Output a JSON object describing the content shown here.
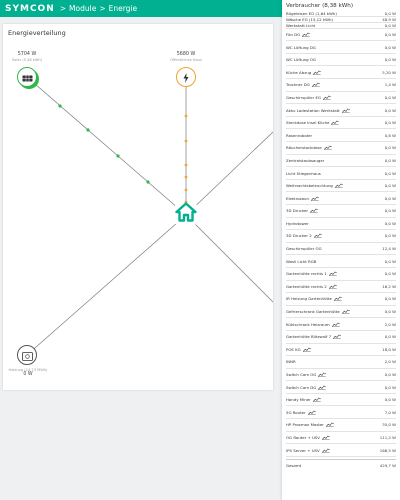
{
  "header": {
    "logo": "SYMCON",
    "breadcrumb": [
      "Module",
      "Energie"
    ],
    "separator": ">",
    "bar_color": "#00b090"
  },
  "card": {
    "title": "Energieverteilung"
  },
  "nodes": {
    "solar": {
      "value": "5704 W",
      "label": "Solar (5,38 kWh)",
      "icon": "solar-panel-icon",
      "color": "#2fb84a"
    },
    "grid": {
      "value": "5680 W",
      "label": "Öffentliches Haus",
      "icon": "lightning-bolt-icon",
      "color": "#f2a32a"
    },
    "home": {
      "icon": "house-icon",
      "color": "#00b090"
    },
    "heating": {
      "label": "Heizung (14,73 MWh)",
      "value": "0 W",
      "icon": "heater-icon"
    }
  },
  "panel": {
    "title": "Verbraucher (8,38 kWh)",
    "rows_compact": [
      {
        "label": "Bügeleisen EG (1,64 kWh)",
        "value": "0,0 W"
      },
      {
        "label": "Wäsche EG (15,12 kWh)",
        "value": "48,9 W"
      },
      {
        "label": "Werkstatt Licht",
        "value": "0,0 W"
      }
    ],
    "rows": [
      {
        "label": "Fön DG",
        "value": "0,0 W",
        "chart": true
      },
      {
        "label": "WC Lüftung DG",
        "value": "0,0 W",
        "chart": false
      },
      {
        "label": "WC Lüftung OG",
        "value": "0,0 W",
        "chart": false
      },
      {
        "label": "Küche Abzug",
        "value": "5,20 W",
        "chart": true
      },
      {
        "label": "Trockner DG",
        "value": "1,4 W",
        "chart": true
      },
      {
        "label": "Geschirrspüler EG",
        "value": "0,0 W",
        "chart": true
      },
      {
        "label": "Akku Ladestation Werkstatt",
        "value": "0,0 W",
        "chart": true
      },
      {
        "label": "Steckdose Insel Küche",
        "value": "0,0 W",
        "chart": true
      },
      {
        "label": "Rasenroboter",
        "value": "0,8 W",
        "chart": false
      },
      {
        "label": "Räucherstackdose",
        "value": "0,0 W",
        "chart": true
      },
      {
        "label": "Zentralstaubsauger",
        "value": "0,0 W",
        "chart": false
      },
      {
        "label": "Licht Stiegenhaus",
        "value": "0,0 W",
        "chart": false
      },
      {
        "label": "Weihnachtsbeleuchtung",
        "value": "0,0 W",
        "chart": true
      },
      {
        "label": "Elektrozaun",
        "value": "0,0 W",
        "chart": true
      },
      {
        "label": "3D Drucker",
        "value": "0,0 W",
        "chart": true
      },
      {
        "label": "Hydrotower",
        "value": "0,0 W",
        "chart": false
      },
      {
        "label": "3D Drucker 2",
        "value": "0,0 W",
        "chart": true
      },
      {
        "label": "Geschirrspüler OG",
        "value": "12,4 W",
        "chart": false
      },
      {
        "label": "Wasli Licht RGB",
        "value": "0,0 W",
        "chart": false
      },
      {
        "label": "Gartenhütte rechts 1",
        "value": "0,0 W",
        "chart": true
      },
      {
        "label": "Gartenhütte rechts 2",
        "value": "16,2 W",
        "chart": true
      },
      {
        "label": "IR Heizung Gartenhütte",
        "value": "0,0 W",
        "chart": true
      },
      {
        "label": "Gefrierschrank Gartenhütte",
        "value": "0,0 W",
        "chart": true
      },
      {
        "label": "Kühlschrank Heizraum",
        "value": "2,0 W",
        "chart": true
      },
      {
        "label": "Gartenhütte Blitzwolf 7",
        "value": "0,0 W",
        "chart": true
      },
      {
        "label": "POE KG",
        "value": "18,0 W",
        "chart": true
      },
      {
        "label": "INNR",
        "value": "2,0 W",
        "chart": false
      },
      {
        "label": "Switch Cam OG",
        "value": "0,0 W",
        "chart": true
      },
      {
        "label": "Switch Cam DG",
        "value": "0,0 W",
        "chart": true
      },
      {
        "label": "Handy Miner",
        "value": "0,0 W",
        "chart": true
      },
      {
        "label": "5G Router",
        "value": "7,0 W",
        "chart": true
      },
      {
        "label": "HP Proxmax Master",
        "value": "35,0 W",
        "chart": true
      },
      {
        "label": "OG Router + USV",
        "value": "111,2 W",
        "chart": true
      },
      {
        "label": "IPS Server + USV",
        "value": "166,5 W",
        "chart": true
      }
    ],
    "total": {
      "label": "Gesamt",
      "value": "429,7 W"
    }
  }
}
